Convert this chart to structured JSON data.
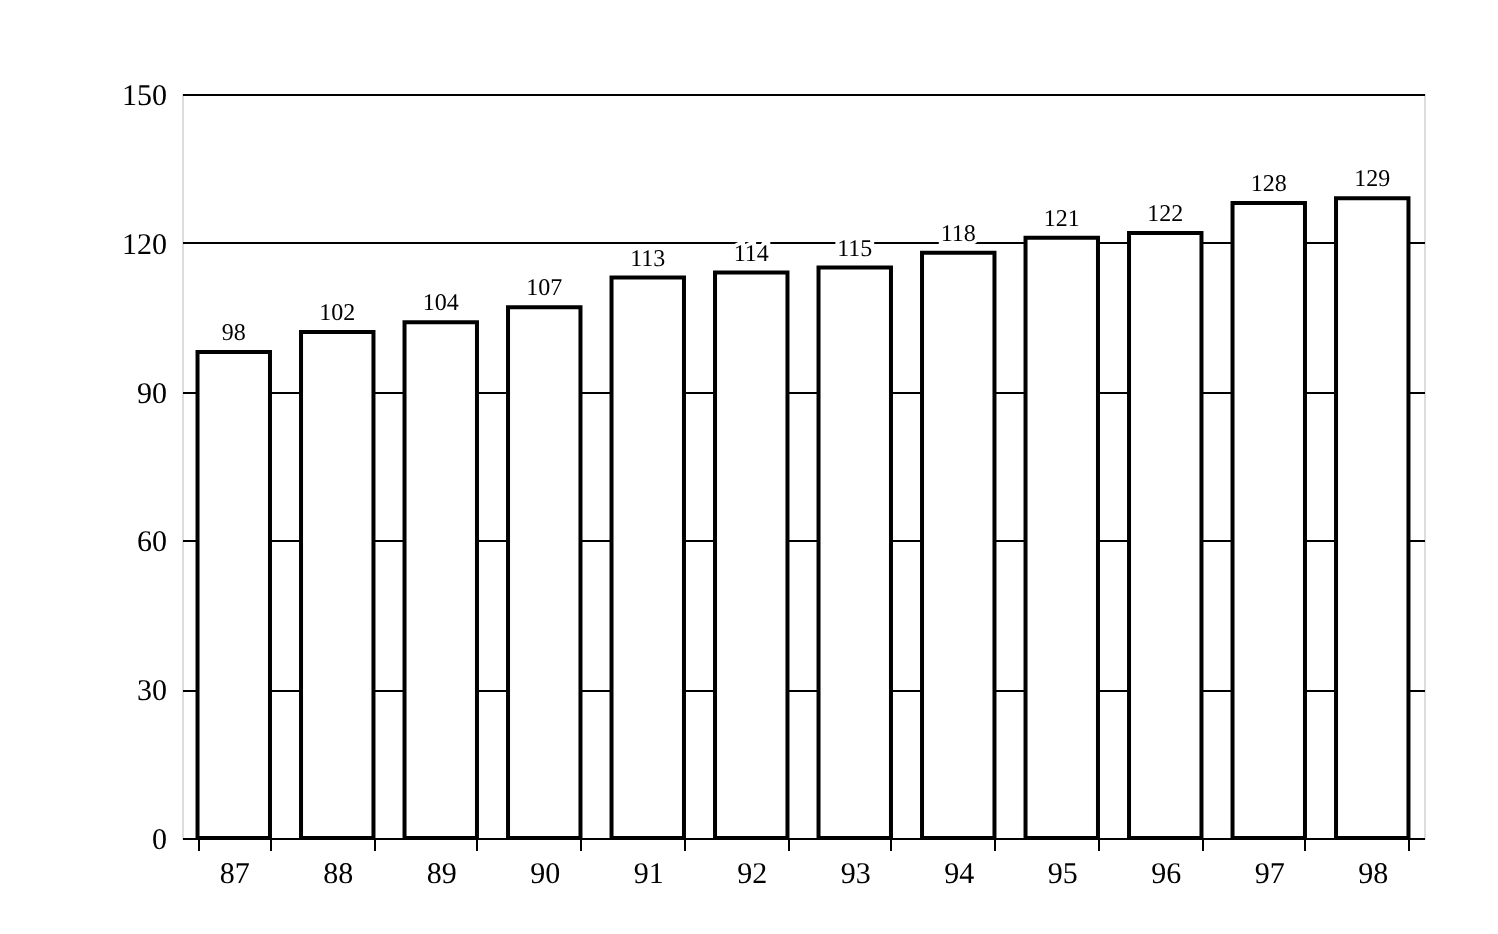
{
  "chart_data": {
    "type": "bar",
    "categories": [
      "87",
      "88",
      "89",
      "90",
      "91",
      "92",
      "93",
      "94",
      "95",
      "96",
      "97",
      "98"
    ],
    "values": [
      98,
      102,
      104,
      107,
      113,
      114,
      115,
      118,
      121,
      122,
      128,
      129
    ],
    "color": "#ffffff",
    "ylim": [
      0,
      150
    ],
    "yticks": [
      0,
      30,
      60,
      90,
      120,
      150
    ],
    "grid": "y",
    "data_labels": true
  }
}
